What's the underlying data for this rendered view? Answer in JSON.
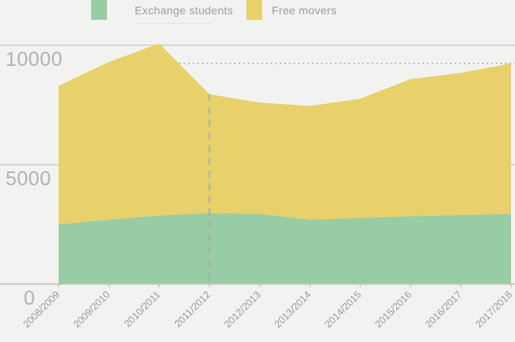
{
  "legend": {
    "items": [
      {
        "label": "Exchange students",
        "color": "#97cca4"
      },
      {
        "label": "Free movers",
        "color": "#e8d06a"
      }
    ]
  },
  "chart_data": {
    "type": "area",
    "stacked": true,
    "title": "",
    "categories": [
      "2008/2009",
      "2009/2010",
      "2010/2011",
      "2011/2012",
      "2012/2013",
      "2013/2014",
      "2014/2015",
      "2015/2016",
      "2016/2017",
      "2017/2018"
    ],
    "series": [
      {
        "name": "Exchange students",
        "color": "#97cca4",
        "values": [
          2500,
          2700,
          2870,
          2970,
          2940,
          2700,
          2770,
          2840,
          2890,
          2940
        ]
      },
      {
        "name": "Free movers",
        "color": "#e8d06a",
        "values": [
          5800,
          6600,
          7200,
          4980,
          4660,
          4760,
          4990,
          5740,
          5950,
          6300
        ]
      }
    ],
    "totals": [
      8300,
      9300,
      10070,
      7950,
      7600,
      7460,
      7760,
      8580,
      8840,
      9240
    ],
    "y_ticks": [
      0,
      5000,
      10000
    ],
    "ylim": [
      0,
      10500
    ],
    "xlabel": "",
    "ylabel": "",
    "legend_position": "top",
    "grid": "horizontal",
    "annotations": {
      "vertical_dashed_at_category": "2011/2012",
      "dotted_reference": "latest_total_value"
    }
  },
  "colors": {
    "background": "#f2f3f1",
    "gridline": "#ccccc9",
    "baseline": "#c6c6c3",
    "dotted_reference": "#a5a5a2",
    "dashed_vertical": "#a7abad",
    "y_axis_text": "#b2b2af",
    "x_axis_text": "#98989a",
    "tick_mark": "#b5b5b2"
  }
}
